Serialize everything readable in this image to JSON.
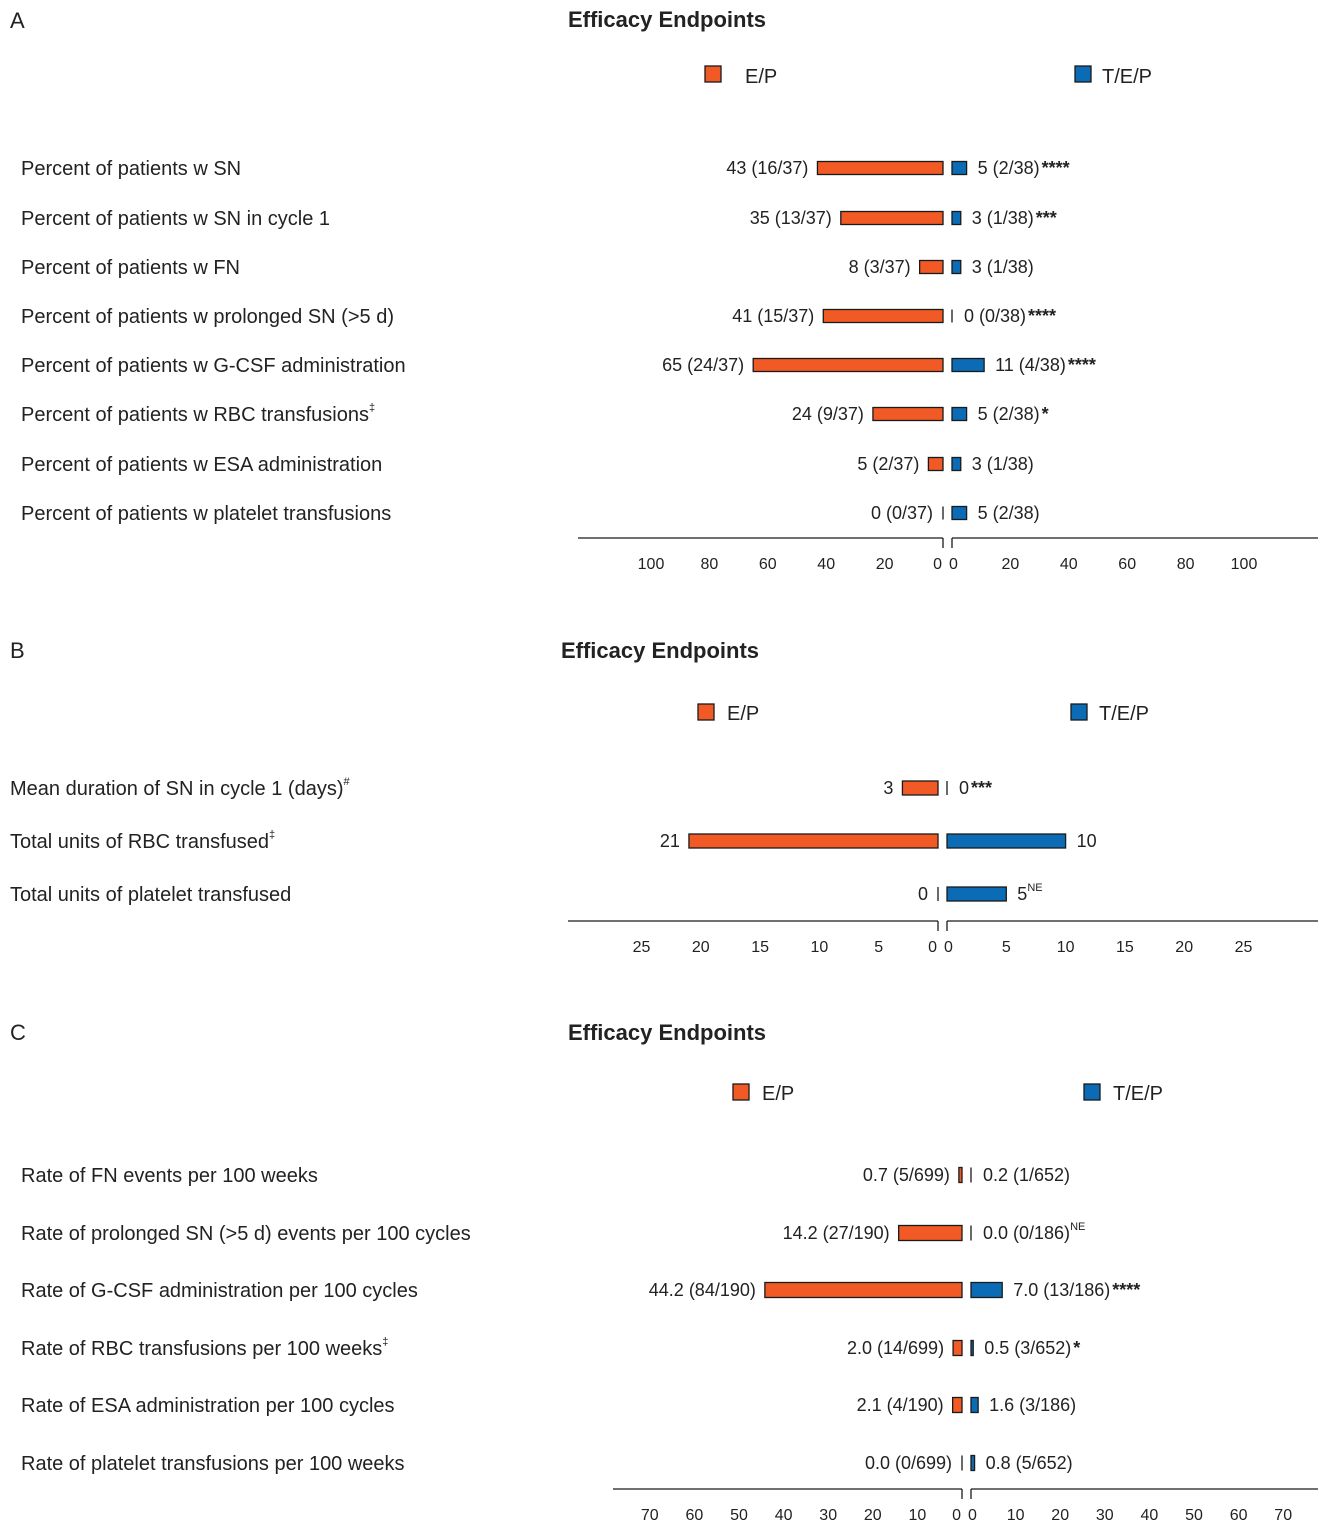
{
  "colors": {
    "ep": "#F15A24",
    "tep": "#0B6CB5"
  },
  "chart_data": [
    {
      "type": "bar",
      "orientation": "horizontal-butterfly",
      "panel": "A",
      "title": "Efficacy Endpoints",
      "legend": [
        {
          "name": "E/P",
          "color": "#F15A24",
          "side": "left"
        },
        {
          "name": "T/E/P",
          "color": "#0B6CB5",
          "side": "right"
        }
      ],
      "xlim": [
        0,
        100
      ],
      "ticks_left": [
        "100",
        "80",
        "60",
        "40",
        "20",
        "0"
      ],
      "ticks_right": [
        "0",
        "20",
        "40",
        "60",
        "80",
        "100"
      ],
      "categories": [
        {
          "label": "Percent of patients w SN",
          "sup": ""
        },
        {
          "label": "Percent of patients w SN in cycle 1",
          "sup": ""
        },
        {
          "label": "Percent of patients w FN",
          "sup": ""
        },
        {
          "label": "Percent of patients w prolonged SN (>5 d)",
          "sup": ""
        },
        {
          "label": "Percent of patients w G-CSF administration",
          "sup": ""
        },
        {
          "label": "Percent of patients w RBC transfusions",
          "sup": "‡"
        },
        {
          "label": "Percent of patients w ESA administration",
          "sup": ""
        },
        {
          "label": "Percent of patients w platelet transfusions",
          "sup": ""
        }
      ],
      "series": [
        {
          "name": "E/P",
          "values": [
            43,
            35,
            8,
            41,
            65,
            24,
            5,
            0
          ],
          "labels": [
            "43 (16/37)",
            "35 (13/37)",
            "8 (3/37)",
            "41 (15/37)",
            "65 (24/37)",
            "24 (9/37)",
            "5 (2/37)",
            "0 (0/37)"
          ]
        },
        {
          "name": "T/E/P",
          "values": [
            5,
            3,
            3,
            0,
            11,
            5,
            3,
            5
          ],
          "labels": [
            "5 (2/38)",
            "3 (1/38)",
            "3 (1/38)",
            "0 (0/38)",
            "11 (4/38)",
            "5 (2/38)",
            "3 (1/38)",
            "5 (2/38)"
          ],
          "marks": [
            "****",
            "***",
            "",
            "****",
            "****",
            "*",
            "",
            ""
          ],
          "sups": [
            "",
            "",
            "",
            "",
            "",
            "",
            "",
            ""
          ]
        }
      ]
    },
    {
      "type": "bar",
      "orientation": "horizontal-butterfly",
      "panel": "B",
      "title": "Efficacy Endpoints",
      "legend": [
        {
          "name": "E/P",
          "color": "#F15A24",
          "side": "left"
        },
        {
          "name": "T/E/P",
          "color": "#0B6CB5",
          "side": "right"
        }
      ],
      "xlim": [
        0,
        25
      ],
      "ticks_left": [
        "25",
        "20",
        "15",
        "10",
        "5",
        "0"
      ],
      "ticks_right": [
        "0",
        "5",
        "10",
        "15",
        "20",
        "25"
      ],
      "categories": [
        {
          "label": "Mean duration of SN in cycle 1 (days)",
          "sup": "#"
        },
        {
          "label": "Total units of RBC transfused",
          "sup": "‡"
        },
        {
          "label": "Total units of platelet transfused",
          "sup": ""
        }
      ],
      "series": [
        {
          "name": "E/P",
          "values": [
            3,
            21,
            0
          ],
          "labels": [
            "3",
            "21",
            "0"
          ]
        },
        {
          "name": "T/E/P",
          "values": [
            0,
            10,
            5
          ],
          "labels": [
            "0",
            "10",
            "5"
          ],
          "marks": [
            "***",
            "",
            ""
          ],
          "sups": [
            "",
            "",
            "NE"
          ]
        }
      ]
    },
    {
      "type": "bar",
      "orientation": "horizontal-butterfly",
      "panel": "C",
      "title": "Efficacy Endpoints",
      "legend": [
        {
          "name": "E/P",
          "color": "#F15A24",
          "side": "left"
        },
        {
          "name": "T/E/P",
          "color": "#0B6CB5",
          "side": "right"
        }
      ],
      "xlim": [
        0,
        70
      ],
      "ticks_left": [
        "70",
        "60",
        "50",
        "40",
        "30",
        "20",
        "10",
        "0"
      ],
      "ticks_right": [
        "0",
        "10",
        "20",
        "30",
        "40",
        "50",
        "60",
        "70"
      ],
      "categories": [
        {
          "label": "Rate of FN events per 100 weeks",
          "sup": ""
        },
        {
          "label": "Rate of prolonged SN (>5 d) events per 100 cycles",
          "sup": ""
        },
        {
          "label": "Rate of G-CSF administration per 100 cycles",
          "sup": ""
        },
        {
          "label": "Rate of RBC transfusions per 100 weeks",
          "sup": "‡"
        },
        {
          "label": "Rate of ESA administration per 100 cycles",
          "sup": ""
        },
        {
          "label": "Rate of platelet transfusions per 100 weeks",
          "sup": ""
        }
      ],
      "series": [
        {
          "name": "E/P",
          "values": [
            0.7,
            14.2,
            44.2,
            2.0,
            2.1,
            0.0
          ],
          "labels": [
            "0.7 (5/699)",
            "14.2 (27/190)",
            "44.2 (84/190)",
            "2.0 (14/699)",
            "2.1 (4/190)",
            "0.0 (0/699)"
          ]
        },
        {
          "name": "T/E/P",
          "values": [
            0.2,
            0.0,
            7.0,
            0.5,
            1.6,
            0.8
          ],
          "labels": [
            "0.2 (1/652)",
            "0.0 (0/186)",
            "7.0 (13/186)",
            "0.5 (3/652)",
            "1.6 (3/186)",
            "0.8 (5/652)"
          ],
          "marks": [
            "",
            "",
            "****",
            "*",
            "",
            ""
          ],
          "sups": [
            "",
            "NE",
            "",
            "",
            "",
            ""
          ]
        }
      ]
    }
  ]
}
